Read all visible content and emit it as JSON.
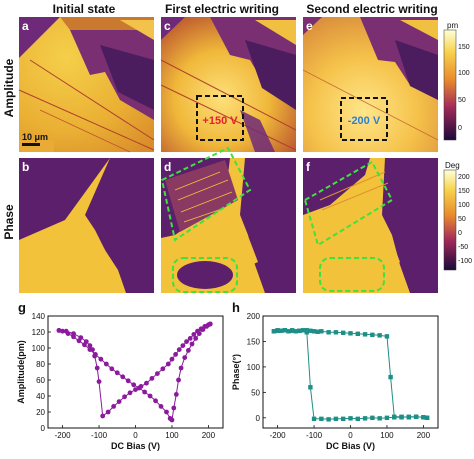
{
  "columns": [
    "Initial state",
    "First electric writing",
    "Second electric writing"
  ],
  "rows": [
    "Amplitude",
    "Phase"
  ],
  "panels": {
    "a": "a",
    "b": "b",
    "c": "c",
    "d": "d",
    "e": "e",
    "f": "f",
    "g": "g",
    "h": "h"
  },
  "scalebar": "10 μm",
  "writing_labels": {
    "first": "+150 V",
    "second": "-200 V"
  },
  "colorbars": {
    "amplitude": {
      "unit": "pm",
      "ticks": [
        "150",
        "100",
        "50",
        "0"
      ]
    },
    "phase": {
      "unit": "Deg",
      "ticks": [
        "200",
        "150",
        "100",
        "50",
        "0",
        "-50",
        "-100"
      ]
    }
  },
  "colors": {
    "map_bright": "#f2c23a",
    "map_dark": "#5c1f6b",
    "box_black": "#111111",
    "box_green": "#3ee23e",
    "label_red": "#e8202a",
    "label_blue": "#2e7fd8",
    "amp_curve": "#8b1a9c",
    "phase_curve": "#1d8f86"
  },
  "chart_data": [
    {
      "type": "scatter",
      "panel": "g",
      "xlabel": "DC Bias (V)",
      "ylabel": "Amplitude(pm)",
      "xlim": [
        -240,
        240
      ],
      "ylim": [
        0,
        140
      ],
      "xticks": [
        -200,
        -100,
        0,
        100,
        200
      ],
      "yticks": [
        0,
        20,
        40,
        60,
        80,
        100,
        120,
        140
      ],
      "series": [
        {
          "x": [
            -210,
            -190,
            -170,
            -150,
            -135,
            -125,
            -118,
            -112,
            -105,
            -100,
            -90,
            -75,
            -60,
            -45,
            -30,
            -15,
            0,
            15,
            30,
            45,
            60,
            75,
            90,
            100,
            110,
            120,
            130,
            140,
            150,
            160,
            170,
            180,
            190,
            200,
            205
          ],
          "values": [
            122,
            121,
            118,
            113,
            108,
            103,
            98,
            90,
            75,
            58,
            15,
            20,
            27,
            33,
            39,
            44,
            48,
            52,
            56,
            62,
            68,
            74,
            80,
            86,
            92,
            98,
            103,
            108,
            112,
            117,
            121,
            124,
            127,
            129,
            130
          ]
        },
        {
          "x": [
            205,
            195,
            185,
            175,
            165,
            155,
            145,
            135,
            125,
            118,
            112,
            105,
            100,
            95,
            85,
            70,
            55,
            40,
            25,
            10,
            -5,
            -20,
            -35,
            -50,
            -65,
            -80,
            -95,
            -110,
            -125,
            -140,
            -155,
            -170,
            -185,
            -200,
            -210
          ],
          "values": [
            130,
            127,
            123,
            118,
            112,
            105,
            97,
            88,
            75,
            60,
            42,
            25,
            10,
            12,
            20,
            27,
            34,
            40,
            45,
            50,
            54,
            59,
            64,
            69,
            74,
            80,
            86,
            92,
            98,
            104,
            109,
            114,
            118,
            121,
            122
          ]
        }
      ]
    },
    {
      "type": "line",
      "panel": "h",
      "xlabel": "DC Bias (V)",
      "ylabel": "Phase(°)",
      "xlim": [
        -240,
        240
      ],
      "ylim": [
        -20,
        200
      ],
      "xticks": [
        -200,
        -100,
        0,
        100,
        200
      ],
      "yticks": [
        0,
        50,
        100,
        150,
        200
      ],
      "series": [
        {
          "x": [
            -210,
            -200,
            -190,
            -180,
            -170,
            -160,
            -150,
            -140,
            -130,
            -120,
            -110,
            -100,
            -90,
            -80,
            -60,
            -40,
            -20,
            0,
            20,
            40,
            60,
            80,
            100,
            110,
            120,
            140,
            160,
            180,
            200,
            210
          ],
          "values": [
            170,
            172,
            171,
            172,
            170,
            171,
            170,
            171,
            172,
            172,
            171,
            170,
            169,
            170,
            168,
            168,
            167,
            166,
            165,
            164,
            163,
            162,
            160,
            80,
            2,
            2,
            1,
            2,
            1,
            0
          ]
        },
        {
          "x": [
            210,
            200,
            180,
            160,
            140,
            120,
            100,
            80,
            60,
            40,
            20,
            0,
            -20,
            -40,
            -60,
            -80,
            -100,
            -110,
            -120,
            -140,
            -160,
            -180,
            -200,
            -210
          ],
          "values": [
            0,
            1,
            2,
            2,
            1,
            1,
            0,
            -1,
            0,
            -1,
            -2,
            -1,
            -2,
            -2,
            -3,
            -2,
            -2,
            60,
            168,
            171,
            172,
            172,
            171,
            170
          ]
        }
      ]
    }
  ]
}
